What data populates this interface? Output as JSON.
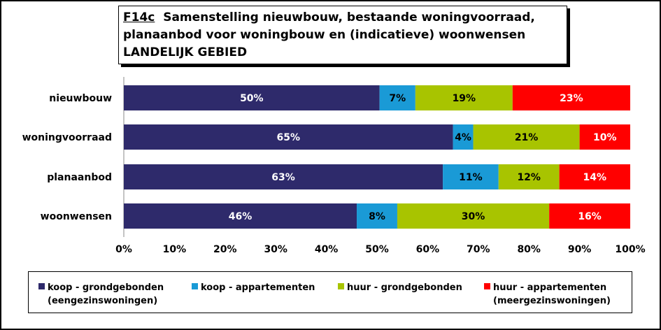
{
  "title": {
    "code": "F14c",
    "line1": "Samenstelling nieuwbouw, bestaande woningvoorraad,",
    "line2": "planaanbod voor woningbouw en (indicatieve) woonwensen",
    "line3": "LANDELIJK GEBIED"
  },
  "colors": {
    "koop_grond": "#2e2a6b",
    "koop_app": "#1a9ad6",
    "huur_grond": "#a8c400",
    "huur_app": "#ff0000"
  },
  "legend": [
    {
      "label": "koop - grondgebonden",
      "sub": "(eengezinswoningen)"
    },
    {
      "label": "koop - appartementen",
      "sub": ""
    },
    {
      "label": "huur - grondgebonden",
      "sub": ""
    },
    {
      "label": "huur - appartementen",
      "sub": "(meergezinswoningen)"
    }
  ],
  "chart_data": {
    "type": "bar",
    "orientation": "horizontal",
    "stacked": "percent",
    "categories": [
      "nieuwbouw",
      "woningvoorraad",
      "planaanbod",
      "woonwensen"
    ],
    "series": [
      {
        "name": "koop - grondgebonden (eengezinswoningen)",
        "values": [
          50,
          65,
          63,
          46
        ],
        "labels": [
          "50%",
          "65%",
          "63%",
          "46%"
        ]
      },
      {
        "name": "koop - appartementen",
        "values": [
          7,
          4,
          11,
          8
        ],
        "labels": [
          "7%",
          "4%",
          "11%",
          "8%"
        ]
      },
      {
        "name": "huur - grondgebonden",
        "values": [
          19,
          21,
          12,
          30
        ],
        "labels": [
          "19%",
          "21%",
          "12%",
          "30%"
        ]
      },
      {
        "name": "huur - appartementen (meergezinswoningen)",
        "values": [
          23,
          10,
          14,
          16
        ],
        "labels": [
          "23%",
          "10%",
          "14%",
          "16%"
        ]
      }
    ],
    "xlim": [
      0,
      100
    ],
    "xticks": [
      "0%",
      "10%",
      "20%",
      "30%",
      "40%",
      "50%",
      "60%",
      "70%",
      "80%",
      "90%",
      "100%"
    ],
    "legend_position": "bottom",
    "grid": false
  }
}
